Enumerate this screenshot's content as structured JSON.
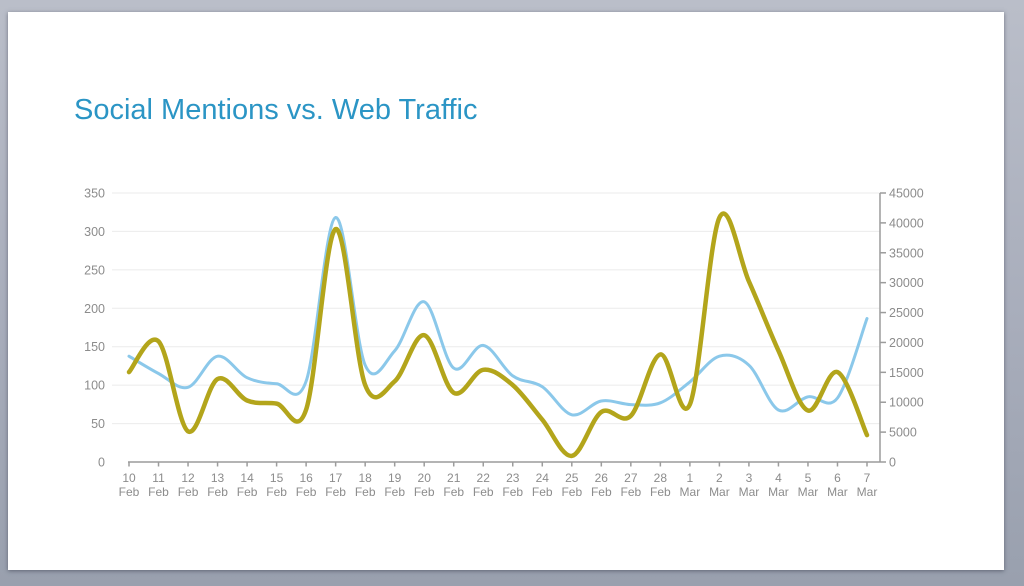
{
  "slide": {
    "title": "Social Mentions vs. Web Traffic",
    "title_color": "#2b95c5"
  },
  "chart_data": {
    "type": "line",
    "title": "Social Mentions vs. Web Traffic",
    "xlabel": "",
    "ylabel_left": "",
    "ylabel_right": "",
    "grid": "horizontal",
    "legend": "none",
    "grid_color": "#ebebeb",
    "axis_color": "#9c9c9c",
    "label_color": "#8c8c8c",
    "categories": [
      {
        "day": "10",
        "month": "Feb"
      },
      {
        "day": "11",
        "month": "Feb"
      },
      {
        "day": "12",
        "month": "Feb"
      },
      {
        "day": "13",
        "month": "Feb"
      },
      {
        "day": "14",
        "month": "Feb"
      },
      {
        "day": "15",
        "month": "Feb"
      },
      {
        "day": "16",
        "month": "Feb"
      },
      {
        "day": "17",
        "month": "Feb"
      },
      {
        "day": "18",
        "month": "Feb"
      },
      {
        "day": "19",
        "month": "Feb"
      },
      {
        "day": "20",
        "month": "Feb"
      },
      {
        "day": "21",
        "month": "Feb"
      },
      {
        "day": "22",
        "month": "Feb"
      },
      {
        "day": "23",
        "month": "Feb"
      },
      {
        "day": "24",
        "month": "Feb"
      },
      {
        "day": "25",
        "month": "Feb"
      },
      {
        "day": "26",
        "month": "Feb"
      },
      {
        "day": "27",
        "month": "Feb"
      },
      {
        "day": "28",
        "month": "Feb"
      },
      {
        "day": "1",
        "month": "Mar"
      },
      {
        "day": "2",
        "month": "Mar"
      },
      {
        "day": "3",
        "month": "Mar"
      },
      {
        "day": "4",
        "month": "Mar"
      },
      {
        "day": "5",
        "month": "Mar"
      },
      {
        "day": "6",
        "month": "Mar"
      },
      {
        "day": "7",
        "month": "Mar"
      }
    ],
    "left_axis": {
      "min": 0,
      "max": 350,
      "tick_labels": [
        "0",
        "50",
        "100",
        "150",
        "200",
        "250",
        "300",
        "350"
      ]
    },
    "right_axis": {
      "min": 0,
      "max": 45000,
      "tick_labels": [
        "0",
        "5000",
        "10000",
        "15000",
        "20000",
        "25000",
        "30000",
        "35000",
        "40000",
        "45000"
      ]
    },
    "series": [
      {
        "name": "Social Mentions",
        "axis": "left",
        "color": "#b3a51b",
        "stroke_width": 4.5,
        "values": [
          117,
          157,
          40,
          108,
          80,
          76,
          68,
          303,
          100,
          105,
          165,
          90,
          120,
          100,
          55,
          8,
          65,
          60,
          140,
          75,
          318,
          235,
          145,
          67,
          117,
          35
        ]
      },
      {
        "name": "Web Traffic",
        "axis": "right",
        "color": "#8bc8ea",
        "stroke_width": 3,
        "values": [
          17700,
          14800,
          12500,
          17700,
          14100,
          13100,
          13500,
          40900,
          16200,
          18600,
          26800,
          15700,
          19500,
          14400,
          12600,
          7900,
          10200,
          9600,
          9900,
          13400,
          17700,
          16200,
          8700,
          10900,
          10700,
          24000
        ]
      }
    ]
  }
}
